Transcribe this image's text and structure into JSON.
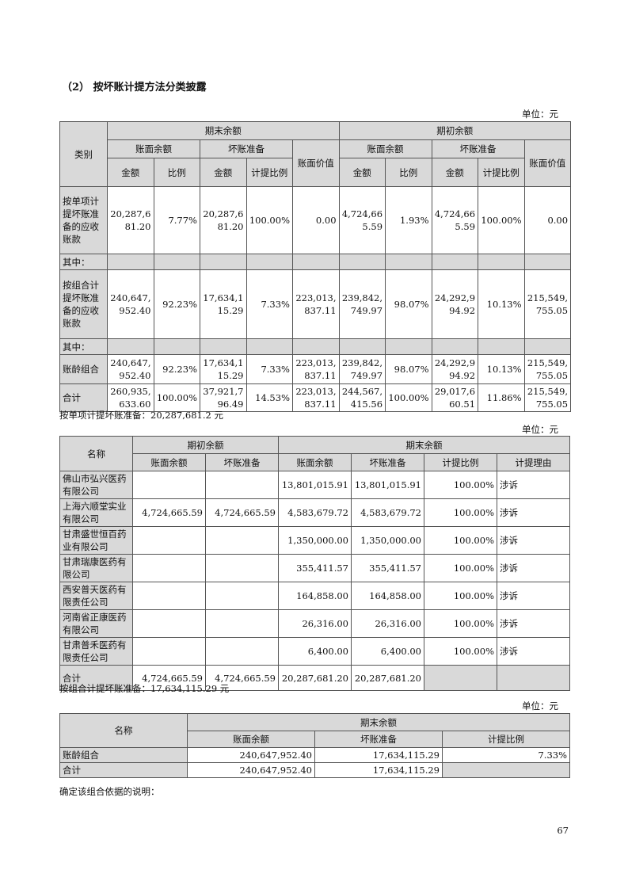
{
  "section_title": "（2） 按坏账计提方法分类披露",
  "unit": "单位：元",
  "t1": {
    "h": {
      "cat": "类别",
      "end": "期末余额",
      "begin": "期初余额",
      "book": "账面余额",
      "bad": "坏账准备",
      "net": "账面价值",
      "amt": "金额",
      "ratio": "比例",
      "rate": "计提比例"
    },
    "rows": [
      {
        "name": "按单项计提坏账准备的应收账款",
        "v": [
          "20,287,681.20",
          "7.77%",
          "20,287,681.20",
          "100.00%",
          "0.00",
          "4,724,665.59",
          "1.93%",
          "4,724,665.59",
          "100.00%",
          "0.00"
        ]
      },
      {
        "name": "其中：",
        "v": []
      },
      {
        "name": "按组合计提坏账准备的应收账款",
        "v": [
          "240,647,952.40",
          "92.23%",
          "17,634,115.29",
          "7.33%",
          "223,013,837.11",
          "239,842,749.97",
          "98.07%",
          "24,292,994.92",
          "10.13%",
          "215,549,755.05"
        ]
      },
      {
        "name": "其中：",
        "v": []
      },
      {
        "name": "账龄组合",
        "v": [
          "240,647,952.40",
          "92.23%",
          "17,634,115.29",
          "7.33%",
          "223,013,837.11",
          "239,842,749.97",
          "98.07%",
          "24,292,994.92",
          "10.13%",
          "215,549,755.05"
        ]
      },
      {
        "name": "合计",
        "v": [
          "260,935,633.60",
          "100.00%",
          "37,921,796.49",
          "14.53%",
          "223,013,837.11",
          "244,567,415.56",
          "100.00%",
          "29,017,660.51",
          "11.86%",
          "215,549,755.05"
        ]
      }
    ]
  },
  "note1": "按单项计提坏账准备：20,287,681.2 元",
  "t2": {
    "h": {
      "name": "名称",
      "begin": "期初余额",
      "end": "期末余额",
      "book": "账面余额",
      "bad": "坏账准备",
      "rate": "计提比例",
      "reason": "计提理由"
    },
    "rows": [
      [
        "佛山市弘兴医药有限公司",
        "",
        "",
        "13,801,015.91",
        "13,801,015.91",
        "100.00%",
        "涉诉"
      ],
      [
        "上海六顺堂实业有限公司",
        "4,724,665.59",
        "4,724,665.59",
        "4,583,679.72",
        "4,583,679.72",
        "100.00%",
        "涉诉"
      ],
      [
        "甘肃盛世恒百药业有限公司",
        "",
        "",
        "1,350,000.00",
        "1,350,000.00",
        "100.00%",
        "涉诉"
      ],
      [
        "甘肃瑞康医药有限公司",
        "",
        "",
        "355,411.57",
        "355,411.57",
        "100.00%",
        "涉诉"
      ],
      [
        "西安普天医药有限责任公司",
        "",
        "",
        "164,858.00",
        "164,858.00",
        "100.00%",
        "涉诉"
      ],
      [
        "河南省正康医药有限公司",
        "",
        "",
        "26,316.00",
        "26,316.00",
        "100.00%",
        "涉诉"
      ],
      [
        "甘肃普禾医药有限责任公司",
        "",
        "",
        "6,400.00",
        "6,400.00",
        "100.00%",
        "涉诉"
      ],
      [
        "合计",
        "4,724,665.59",
        "4,724,665.59",
        "20,287,681.20",
        "20,287,681.20",
        "",
        ""
      ]
    ]
  },
  "note2": "按组合计提坏账准备：17,634,115.29 元",
  "t3": {
    "h": {
      "name": "名称",
      "end": "期末余额",
      "book": "账面余额",
      "bad": "坏账准备",
      "rate": "计提比例"
    },
    "rows": [
      [
        "账龄组合",
        "240,647,952.40",
        "17,634,115.29",
        "7.33%"
      ],
      [
        "合计",
        "240,647,952.40",
        "17,634,115.29",
        ""
      ]
    ]
  },
  "note3": "确定该组合依据的说明：",
  "page_number": "67"
}
